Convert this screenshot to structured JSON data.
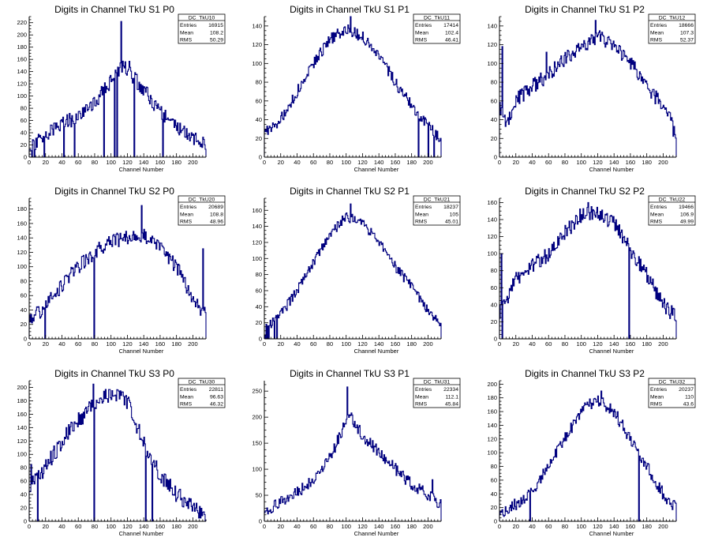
{
  "page": {
    "grid": "3x3",
    "hist_color": "#00007f",
    "axis_color": "#000000",
    "background": "#ffffff"
  },
  "chart_data": [
    {
      "type": "bar",
      "title": "Digits in Channel TkU S1 P0",
      "xlabel": "Channel Number",
      "ylabel": "",
      "xlim": [
        0,
        216
      ],
      "ylim": [
        0,
        230
      ],
      "xticks": [
        0,
        20,
        40,
        60,
        80,
        100,
        120,
        140,
        160,
        180,
        200
      ],
      "yticks": [
        0,
        20,
        40,
        60,
        80,
        100,
        120,
        140,
        160,
        180,
        200,
        220
      ],
      "stats": {
        "name": "DC_TkU10",
        "entries": "16915",
        "mean": "108.2",
        "rms": "50.29"
      },
      "profile": [
        [
          0,
          10
        ],
        [
          10,
          25
        ],
        [
          25,
          40
        ],
        [
          40,
          55
        ],
        [
          60,
          65
        ],
        [
          80,
          90
        ],
        [
          100,
          125
        ],
        [
          115,
          150
        ],
        [
          125,
          135
        ],
        [
          140,
          110
        ],
        [
          160,
          75
        ],
        [
          185,
          45
        ],
        [
          200,
          30
        ],
        [
          215,
          25
        ]
      ],
      "spikes": [
        [
          112,
          222
        ],
        [
          91,
          160
        ],
        [
          107,
          178
        ],
        [
          122,
          157
        ]
      ],
      "dips": [
        3,
        6,
        18,
        42,
        55,
        91,
        104,
        107,
        128,
        163
      ],
      "noise": 12,
      "seed": 11
    },
    {
      "type": "bar",
      "title": "Digits in Channel TkU S1 P1",
      "xlabel": "Channel Number",
      "ylabel": "",
      "xlim": [
        0,
        216
      ],
      "ylim": [
        0,
        150
      ],
      "xticks": [
        0,
        20,
        40,
        60,
        80,
        100,
        120,
        140,
        160,
        180,
        200
      ],
      "yticks": [
        0,
        20,
        40,
        60,
        80,
        100,
        120,
        140
      ],
      "stats": {
        "name": "DC_TkU11",
        "entries": "17414",
        "mean": "102.4",
        "rms": "46.41"
      },
      "profile": [
        [
          0,
          25
        ],
        [
          20,
          40
        ],
        [
          40,
          70
        ],
        [
          60,
          100
        ],
        [
          80,
          125
        ],
        [
          100,
          138
        ],
        [
          120,
          128
        ],
        [
          140,
          110
        ],
        [
          160,
          80
        ],
        [
          180,
          55
        ],
        [
          195,
          38
        ],
        [
          210,
          25
        ],
        [
          216,
          15
        ]
      ],
      "spikes": [
        [
          105,
          150
        ]
      ],
      "dips": [
        188,
        200,
        207
      ],
      "noise": 6,
      "seed": 22
    },
    {
      "type": "bar",
      "title": "Digits in Channel TkU S1 P2",
      "xlabel": "Channel Number",
      "ylabel": "",
      "xlim": [
        0,
        216
      ],
      "ylim": [
        0,
        150
      ],
      "xticks": [
        0,
        20,
        40,
        60,
        80,
        100,
        120,
        140,
        160,
        180,
        200
      ],
      "yticks": [
        0,
        20,
        40,
        60,
        80,
        100,
        120,
        140
      ],
      "stats": {
        "name": "DC_TkU12",
        "entries": "18666",
        "mean": "107.3",
        "rms": "52.37"
      },
      "profile": [
        [
          0,
          55
        ],
        [
          10,
          35
        ],
        [
          20,
          60
        ],
        [
          40,
          75
        ],
        [
          60,
          88
        ],
        [
          80,
          105
        ],
        [
          100,
          118
        ],
        [
          120,
          130
        ],
        [
          140,
          118
        ],
        [
          160,
          100
        ],
        [
          180,
          78
        ],
        [
          200,
          52
        ],
        [
          210,
          40
        ],
        [
          216,
          15
        ]
      ],
      "spikes": [
        [
          3,
          118
        ],
        [
          57,
          112
        ],
        [
          117,
          146
        ]
      ],
      "dips": [],
      "noise": 8,
      "seed": 33
    },
    {
      "type": "bar",
      "title": "Digits in Channel TkU S2 P0",
      "xlabel": "Channel Number",
      "ylabel": "",
      "xlim": [
        0,
        216
      ],
      "ylim": [
        0,
        195
      ],
      "xticks": [
        0,
        20,
        40,
        60,
        80,
        100,
        120,
        140,
        160,
        180,
        200
      ],
      "yticks": [
        0,
        20,
        40,
        60,
        80,
        100,
        120,
        140,
        160,
        180
      ],
      "stats": {
        "name": "DC_TkU20",
        "entries": "20689",
        "mean": "108.8",
        "rms": "48.96"
      },
      "profile": [
        [
          0,
          25
        ],
        [
          20,
          45
        ],
        [
          40,
          75
        ],
        [
          60,
          100
        ],
        [
          80,
          120
        ],
        [
          100,
          135
        ],
        [
          120,
          140
        ],
        [
          140,
          145
        ],
        [
          160,
          125
        ],
        [
          180,
          100
        ],
        [
          200,
          55
        ],
        [
          210,
          40
        ],
        [
          216,
          35
        ]
      ],
      "spikes": [
        [
          137,
          185
        ],
        [
          212,
          125
        ]
      ],
      "dips": [
        19,
        79
      ],
      "noise": 10,
      "seed": 44
    },
    {
      "type": "bar",
      "title": "Digits in Channel TkU S2 P1",
      "xlabel": "Channel Number",
      "ylabel": "",
      "xlim": [
        0,
        216
      ],
      "ylim": [
        0,
        175
      ],
      "xticks": [
        0,
        20,
        40,
        60,
        80,
        100,
        120,
        140,
        160,
        180,
        200
      ],
      "yticks": [
        0,
        20,
        40,
        60,
        80,
        100,
        120,
        140,
        160
      ],
      "stats": {
        "name": "DC_TkU21",
        "entries": "18237",
        "mean": "105",
        "rms": "45.01"
      },
      "profile": [
        [
          0,
          10
        ],
        [
          20,
          30
        ],
        [
          40,
          60
        ],
        [
          60,
          95
        ],
        [
          80,
          130
        ],
        [
          100,
          152
        ],
        [
          120,
          145
        ],
        [
          140,
          120
        ],
        [
          160,
          90
        ],
        [
          180,
          65
        ],
        [
          200,
          35
        ],
        [
          216,
          20
        ]
      ],
      "spikes": [
        [
          105,
          168
        ]
      ],
      "dips": [
        1,
        3,
        5,
        12,
        15
      ],
      "noise": 6,
      "seed": 55
    },
    {
      "type": "bar",
      "title": "Digits in Channel TkU S2 P2",
      "xlabel": "Channel Number",
      "ylabel": "",
      "xlim": [
        0,
        216
      ],
      "ylim": [
        0,
        165
      ],
      "xticks": [
        0,
        20,
        40,
        60,
        80,
        100,
        120,
        140,
        160,
        180,
        200
      ],
      "yticks": [
        0,
        20,
        40,
        60,
        80,
        100,
        120,
        140,
        160
      ],
      "stats": {
        "name": "DC_TkU22",
        "entries": "19466",
        "mean": "106.9",
        "rms": "49.99"
      },
      "profile": [
        [
          0,
          30
        ],
        [
          20,
          70
        ],
        [
          40,
          85
        ],
        [
          60,
          100
        ],
        [
          80,
          125
        ],
        [
          100,
          145
        ],
        [
          120,
          148
        ],
        [
          140,
          135
        ],
        [
          160,
          105
        ],
        [
          180,
          75
        ],
        [
          200,
          40
        ],
        [
          216,
          25
        ]
      ],
      "spikes": [
        [
          2,
          100
        ],
        [
          108,
          160
        ]
      ],
      "dips": [
        3,
        158
      ],
      "noise": 9,
      "seed": 66
    },
    {
      "type": "bar",
      "title": "Digits in Channel TkU S3 P0",
      "xlabel": "Channel Number",
      "ylabel": "",
      "xlim": [
        0,
        216
      ],
      "ylim": [
        0,
        210
      ],
      "xticks": [
        0,
        20,
        40,
        60,
        80,
        100,
        120,
        140,
        160,
        180,
        200
      ],
      "yticks": [
        0,
        20,
        40,
        60,
        80,
        100,
        120,
        140,
        160,
        180,
        200
      ],
      "stats": {
        "name": "DC_TkU30",
        "entries": "22811",
        "mean": "96.63",
        "rms": "46.32"
      },
      "profile": [
        [
          0,
          50
        ],
        [
          10,
          65
        ],
        [
          20,
          80
        ],
        [
          40,
          120
        ],
        [
          60,
          150
        ],
        [
          80,
          175
        ],
        [
          100,
          190
        ],
        [
          120,
          180
        ],
        [
          140,
          115
        ],
        [
          160,
          70
        ],
        [
          180,
          40
        ],
        [
          200,
          22
        ],
        [
          216,
          10
        ]
      ],
      "spikes": [
        [
          2,
          85
        ],
        [
          78,
          205
        ]
      ],
      "dips": [
        10,
        79,
        142,
        150
      ],
      "noise": 12,
      "seed": 77
    },
    {
      "type": "bar",
      "title": "Digits in Channel TkU S3 P1",
      "xlabel": "Channel Number",
      "ylabel": "",
      "xlim": [
        0,
        216
      ],
      "ylim": [
        0,
        270
      ],
      "xticks": [
        0,
        20,
        40,
        60,
        80,
        100,
        120,
        140,
        160,
        180,
        200
      ],
      "yticks": [
        0,
        50,
        100,
        150,
        200,
        250
      ],
      "stats": {
        "name": "DC_TkU31",
        "entries": "22334",
        "mean": "112.1",
        "rms": "45.84"
      },
      "profile": [
        [
          0,
          20
        ],
        [
          20,
          35
        ],
        [
          40,
          55
        ],
        [
          60,
          80
        ],
        [
          80,
          120
        ],
        [
          95,
          175
        ],
        [
          105,
          200
        ],
        [
          120,
          165
        ],
        [
          140,
          135
        ],
        [
          160,
          100
        ],
        [
          180,
          70
        ],
        [
          200,
          50
        ],
        [
          216,
          30
        ]
      ],
      "spikes": [
        [
          101,
          258
        ],
        [
          168,
          95
        ],
        [
          205,
          80
        ]
      ],
      "dips": [],
      "noise": 12,
      "seed": 88
    },
    {
      "type": "bar",
      "title": "Digits in Channel TkU S3 P2",
      "xlabel": "Channel Number",
      "ylabel": "",
      "xlim": [
        0,
        216
      ],
      "ylim": [
        0,
        205
      ],
      "xticks": [
        0,
        20,
        40,
        60,
        80,
        100,
        120,
        140,
        160,
        180,
        200
      ],
      "yticks": [
        0,
        20,
        40,
        60,
        80,
        100,
        120,
        140,
        160,
        180,
        200
      ],
      "stats": {
        "name": "DC_TkU32",
        "entries": "20237",
        "mean": "110",
        "rms": "43.6"
      },
      "profile": [
        [
          0,
          10
        ],
        [
          20,
          25
        ],
        [
          40,
          45
        ],
        [
          60,
          80
        ],
        [
          80,
          120
        ],
        [
          100,
          160
        ],
        [
          120,
          178
        ],
        [
          140,
          160
        ],
        [
          160,
          120
        ],
        [
          180,
          80
        ],
        [
          200,
          40
        ],
        [
          216,
          20
        ]
      ],
      "spikes": [
        [
          124,
          190
        ]
      ],
      "dips": [
        37,
        170
      ],
      "noise": 9,
      "seed": 99
    }
  ]
}
